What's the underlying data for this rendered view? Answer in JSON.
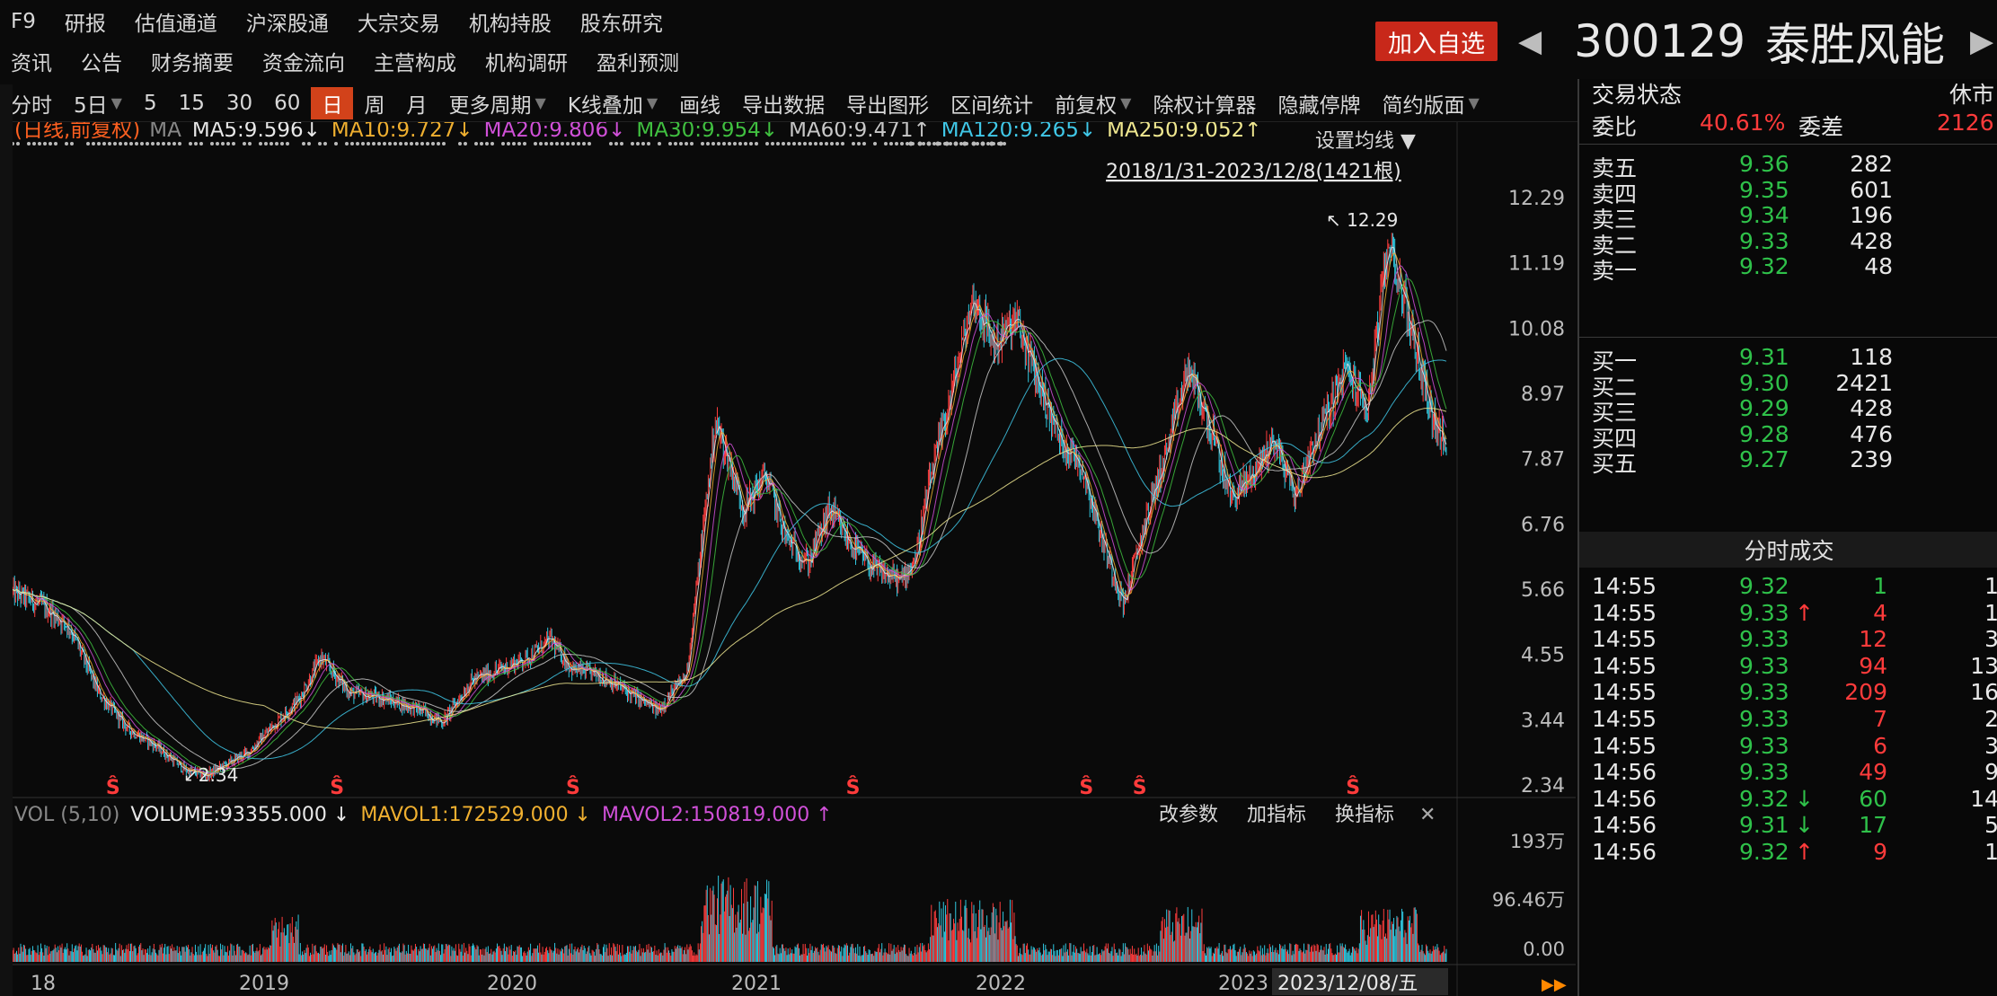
{
  "nav": {
    "row1": [
      "F9",
      "研报",
      "估值通道",
      "沪深股通",
      "大宗交易",
      "机构持股",
      "股东研究"
    ],
    "row2": [
      "资讯",
      "公告",
      "财务摘要",
      "资金流向",
      "主营构成",
      "机构调研",
      "盈利预测"
    ],
    "add_watch": "加入自选"
  },
  "stock": {
    "code": "300129",
    "name": "泰胜风能",
    "left_arrow": "◀",
    "right_arrow": "▶"
  },
  "toolbar": [
    {
      "label": "分时",
      "active": false,
      "dd": false
    },
    {
      "label": "5日",
      "active": false,
      "dd": true
    },
    {
      "label": "5",
      "active": false,
      "dd": false
    },
    {
      "label": "15",
      "active": false,
      "dd": false
    },
    {
      "label": "30",
      "active": false,
      "dd": false
    },
    {
      "label": "60",
      "active": false,
      "dd": false
    },
    {
      "label": "日",
      "active": true,
      "dd": false
    },
    {
      "label": "周",
      "active": false,
      "dd": false
    },
    {
      "label": "月",
      "active": false,
      "dd": false
    },
    {
      "label": "更多周期",
      "active": false,
      "dd": true
    },
    {
      "label": "K线叠加",
      "active": false,
      "dd": true
    },
    {
      "label": "画线",
      "active": false,
      "dd": false
    },
    {
      "label": "导出数据",
      "active": false,
      "dd": false
    },
    {
      "label": "导出图形",
      "active": false,
      "dd": false
    },
    {
      "label": "区间统计",
      "active": false,
      "dd": false
    },
    {
      "label": "前复权",
      "active": false,
      "dd": true
    },
    {
      "label": "除权计算器",
      "active": false,
      "dd": false
    },
    {
      "label": "隐藏停牌",
      "active": false,
      "dd": false
    },
    {
      "label": "简约版面",
      "active": false,
      "dd": true
    }
  ],
  "ma_legend": {
    "mode": "(日线,前复权)",
    "ma_label": "MA",
    "items": [
      {
        "text": "MA5:9.596↓",
        "color": "#e8e8e8"
      },
      {
        "text": "MA10:9.727↓",
        "color": "#f0b030"
      },
      {
        "text": "MA20:9.806↓",
        "color": "#d050d8"
      },
      {
        "text": "MA30:9.954↓",
        "color": "#40c040"
      },
      {
        "text": "MA60:9.471↑",
        "color": "#c8c8c8"
      },
      {
        "text": "MA120:9.265↓",
        "color": "#40c8e8"
      },
      {
        "text": "MA250:9.052↑",
        "color": "#f0e890"
      }
    ],
    "set_ma": "设置均线",
    "range": "2018/1/31-2023/12/8(1421根)"
  },
  "chart_data": {
    "type": "candlestick",
    "range": "2018/1/31-2023/12/8",
    "bars": 1421,
    "y_ticks": [
      12.29,
      11.19,
      10.08,
      8.97,
      7.87,
      6.76,
      5.66,
      4.55,
      3.44,
      2.34
    ],
    "ylim": [
      2.34,
      12.29
    ],
    "x_ticks": [
      "18",
      "2019",
      "2020",
      "2021",
      "2022",
      "2023"
    ],
    "cursor_date": "2023/12/08/五",
    "max_label": "12.29",
    "min_label": "2.34",
    "price_path": [
      {
        "t": 0.0,
        "p": 5.6
      },
      {
        "t": 0.02,
        "p": 5.4
      },
      {
        "t": 0.04,
        "p": 5.0
      },
      {
        "t": 0.06,
        "p": 3.9
      },
      {
        "t": 0.08,
        "p": 3.3
      },
      {
        "t": 0.1,
        "p": 3.0
      },
      {
        "t": 0.12,
        "p": 2.6
      },
      {
        "t": 0.135,
        "p": 2.5
      },
      {
        "t": 0.15,
        "p": 2.7
      },
      {
        "t": 0.165,
        "p": 2.9
      },
      {
        "t": 0.18,
        "p": 3.3
      },
      {
        "t": 0.2,
        "p": 3.8
      },
      {
        "t": 0.215,
        "p": 4.5
      },
      {
        "t": 0.235,
        "p": 3.9
      },
      {
        "t": 0.26,
        "p": 3.8
      },
      {
        "t": 0.285,
        "p": 3.6
      },
      {
        "t": 0.3,
        "p": 3.4
      },
      {
        "t": 0.32,
        "p": 4.1
      },
      {
        "t": 0.34,
        "p": 4.3
      },
      {
        "t": 0.36,
        "p": 4.5
      },
      {
        "t": 0.375,
        "p": 4.8
      },
      {
        "t": 0.39,
        "p": 4.3
      },
      {
        "t": 0.41,
        "p": 4.2
      },
      {
        "t": 0.43,
        "p": 3.9
      },
      {
        "t": 0.45,
        "p": 3.6
      },
      {
        "t": 0.47,
        "p": 4.2
      },
      {
        "t": 0.48,
        "p": 6.3
      },
      {
        "t": 0.49,
        "p": 8.5
      },
      {
        "t": 0.5,
        "p": 7.8
      },
      {
        "t": 0.51,
        "p": 7.0
      },
      {
        "t": 0.525,
        "p": 7.6
      },
      {
        "t": 0.54,
        "p": 6.5
      },
      {
        "t": 0.555,
        "p": 6.1
      },
      {
        "t": 0.57,
        "p": 7.0
      },
      {
        "t": 0.585,
        "p": 6.4
      },
      {
        "t": 0.6,
        "p": 6.0
      },
      {
        "t": 0.62,
        "p": 5.8
      },
      {
        "t": 0.63,
        "p": 6.2
      },
      {
        "t": 0.64,
        "p": 7.5
      },
      {
        "t": 0.655,
        "p": 9.0
      },
      {
        "t": 0.67,
        "p": 10.6
      },
      {
        "t": 0.685,
        "p": 9.8
      },
      {
        "t": 0.7,
        "p": 10.2
      },
      {
        "t": 0.715,
        "p": 9.2
      },
      {
        "t": 0.73,
        "p": 8.2
      },
      {
        "t": 0.745,
        "p": 7.8
      },
      {
        "t": 0.76,
        "p": 6.5
      },
      {
        "t": 0.775,
        "p": 5.4
      },
      {
        "t": 0.79,
        "p": 6.8
      },
      {
        "t": 0.805,
        "p": 8.0
      },
      {
        "t": 0.82,
        "p": 9.4
      },
      {
        "t": 0.835,
        "p": 8.4
      },
      {
        "t": 0.85,
        "p": 7.2
      },
      {
        "t": 0.865,
        "p": 7.6
      },
      {
        "t": 0.88,
        "p": 8.2
      },
      {
        "t": 0.895,
        "p": 7.2
      },
      {
        "t": 0.905,
        "p": 8.0
      },
      {
        "t": 0.92,
        "p": 8.8
      },
      {
        "t": 0.93,
        "p": 9.4
      },
      {
        "t": 0.945,
        "p": 8.7
      },
      {
        "t": 0.96,
        "p": 11.6
      },
      {
        "t": 0.97,
        "p": 10.6
      },
      {
        "t": 0.98,
        "p": 9.6
      },
      {
        "t": 0.99,
        "p": 8.6
      },
      {
        "t": 1.0,
        "p": 8.0
      }
    ],
    "s_marker_t": [
      0.07,
      0.238,
      0.415,
      0.625,
      0.8,
      0.84,
      1.0
    ]
  },
  "volume": {
    "title": "VOL (5,10)",
    "volume": "VOLUME:93355.000 ↓",
    "mavol1": "MAVOL1:172529.000 ↓",
    "mavol2": "MAVOL2:150819.000 ↑",
    "btns": [
      "改参数",
      "加指标",
      "换指标"
    ],
    "y_ticks": [
      "193万",
      "96.46万",
      "0.00"
    ]
  },
  "panel": {
    "trade_status": "交易状态",
    "market": "休市",
    "weibi_label": "委比",
    "weibi": "40.61%",
    "weicha_label": "委差",
    "weicha": "2126",
    "asks": [
      {
        "label": "卖五",
        "price": "9.36",
        "vol": "282"
      },
      {
        "label": "卖四",
        "price": "9.35",
        "vol": "601"
      },
      {
        "label": "卖三",
        "price": "9.34",
        "vol": "196"
      },
      {
        "label": "卖二",
        "price": "9.33",
        "vol": "428"
      },
      {
        "label": "卖一",
        "price": "9.32",
        "vol": "48"
      }
    ],
    "bids": [
      {
        "label": "买一",
        "price": "9.31",
        "vol": "118"
      },
      {
        "label": "买二",
        "price": "9.30",
        "vol": "2421"
      },
      {
        "label": "买三",
        "price": "9.29",
        "vol": "428"
      },
      {
        "label": "买四",
        "price": "9.28",
        "vol": "476"
      },
      {
        "label": "买五",
        "price": "9.27",
        "vol": "239"
      }
    ],
    "ticks_title": "分时成交",
    "ticks": [
      {
        "time": "14:55",
        "price": "9.32",
        "arrow": "",
        "vol": "1",
        "n": "1",
        "pc": "green",
        "vc": "green"
      },
      {
        "time": "14:55",
        "price": "9.33",
        "arrow": "↑",
        "vol": "4",
        "n": "1",
        "pc": "green",
        "vc": "red"
      },
      {
        "time": "14:55",
        "price": "9.33",
        "arrow": "",
        "vol": "12",
        "n": "3",
        "pc": "green",
        "vc": "red"
      },
      {
        "time": "14:55",
        "price": "9.33",
        "arrow": "",
        "vol": "94",
        "n": "13",
        "pc": "green",
        "vc": "red"
      },
      {
        "time": "14:55",
        "price": "9.33",
        "arrow": "",
        "vol": "209",
        "n": "16",
        "pc": "green",
        "vc": "red"
      },
      {
        "time": "14:55",
        "price": "9.33",
        "arrow": "",
        "vol": "7",
        "n": "2",
        "pc": "green",
        "vc": "red"
      },
      {
        "time": "14:55",
        "price": "9.33",
        "arrow": "",
        "vol": "6",
        "n": "3",
        "pc": "green",
        "vc": "red"
      },
      {
        "time": "14:56",
        "price": "9.33",
        "arrow": "",
        "vol": "49",
        "n": "9",
        "pc": "green",
        "vc": "red"
      },
      {
        "time": "14:56",
        "price": "9.32",
        "arrow": "↓",
        "vol": "60",
        "n": "14",
        "pc": "green",
        "vc": "green"
      },
      {
        "time": "14:56",
        "price": "9.31",
        "arrow": "↓",
        "vol": "17",
        "n": "5",
        "pc": "green",
        "vc": "green"
      },
      {
        "time": "14:56",
        "price": "9.32",
        "arrow": "↑",
        "vol": "9",
        "n": "1",
        "pc": "green",
        "vc": "red"
      }
    ]
  }
}
